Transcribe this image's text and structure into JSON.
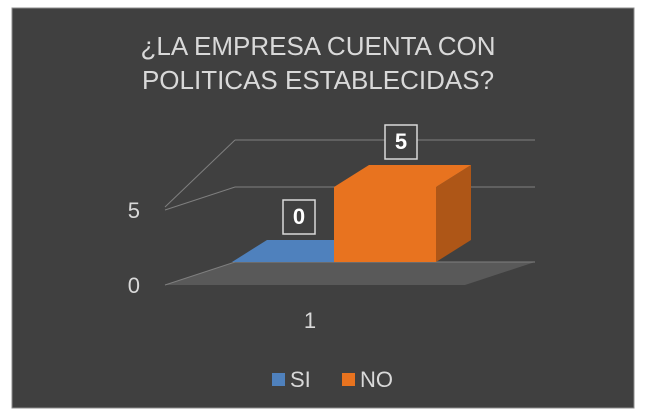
{
  "chart_data": {
    "type": "bar3d",
    "title": "¿LA EMPRESA CUENTA CON POLITICAS ESTABLECIDAS?",
    "categories": [
      "1"
    ],
    "series": [
      {
        "name": "SI",
        "color": "#4f81bd",
        "values": [
          0
        ]
      },
      {
        "name": "NO",
        "color": "#e8731f",
        "values": [
          5
        ]
      }
    ],
    "ylim": [
      0,
      10
    ],
    "yticks": [
      0,
      5
    ],
    "grid": true,
    "legend": "bottom"
  }
}
